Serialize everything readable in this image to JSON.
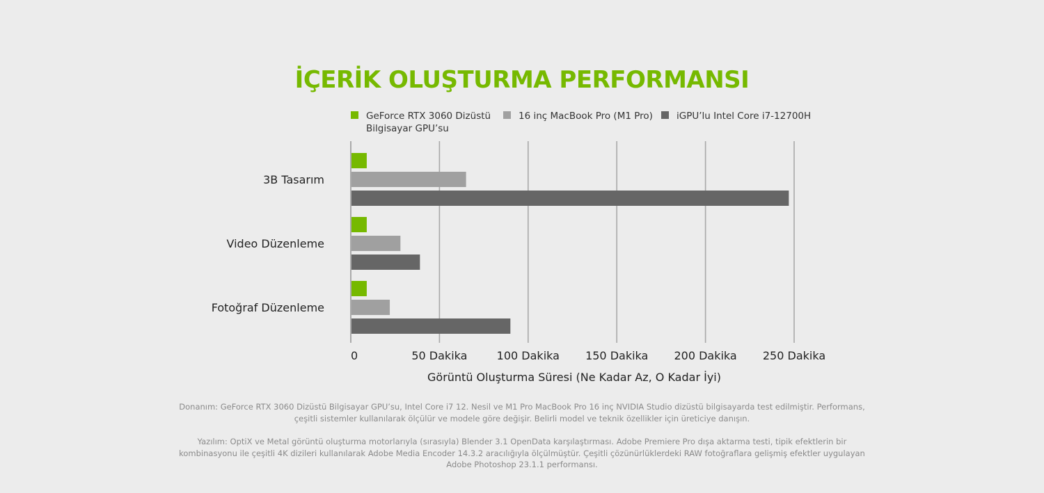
{
  "chart_data": {
    "type": "bar",
    "orientation": "horizontal",
    "title": "İÇERİK OLUŞTURMA PERFORMANSI",
    "categories": [
      "3B Tasarım",
      "Video Düzenleme",
      "Fotoğraf Düzenleme"
    ],
    "series": [
      {
        "name": "GeForce RTX 3060 Dizüstü Bilgisayar GPU’su",
        "name_lines": [
          "GeForce RTX 3060 Dizüstü",
          "Bilgisayar GPU’su"
        ],
        "color": "#76b900",
        "values": [
          9,
          9,
          9
        ]
      },
      {
        "name": "16 inç MacBook Pro (M1 Pro)",
        "name_lines": [
          "16 inç MacBook Pro (M1 Pro)"
        ],
        "color": "#a0a0a0",
        "values": [
          65,
          28,
          22
        ]
      },
      {
        "name": "iGPU’lu Intel Core i7-12700H",
        "name_lines": [
          "iGPU’lu Intel Core i7-12700H"
        ],
        "color": "#666666",
        "values": [
          247,
          39,
          90
        ]
      }
    ],
    "xlim": [
      0,
      250
    ],
    "xticks": [
      0,
      50,
      100,
      150,
      200,
      250
    ],
    "xtick_labels": [
      "0",
      "50 Dakika",
      "100 Dakika",
      "150 Dakika",
      "200 Dakika",
      "250 Dakika"
    ],
    "xlabel": "Görüntü Oluşturma Süresi (Ne Kadar Az, O Kadar İyi)",
    "ylabel": "",
    "grid": "vertical",
    "legend_position": "top"
  },
  "footnotes": {
    "hardware": "Donanım: GeForce RTX 3060 Dizüstü Bilgisayar GPU’su, Intel Core i7 12. Nesil ve M1 Pro MacBook Pro 16 inç NVIDIA Studio dizüstü bilgisayarda test edilmiştir. Performans, çeşitli sistemler kullanılarak ölçülür ve modele göre değişir. Belirli model ve teknik özellikler için üreticiye danışın.",
    "software": "Yazılım: OptiX ve Metal görüntü oluşturma motorlarıyla (sırasıyla) Blender 3.1 OpenData karşılaştırması. Adobe Premiere Pro dışa aktarma testi, tipik efektlerin bir kombinasyonu ile çeşitli 4K dizileri kullanılarak Adobe Media Encoder 14.3.2 aracılığıyla ölçülmüştür. Çeşitli çözünürlüklerdeki RAW fotoğraflara gelişmiş efektler uygulayan Adobe Photoshop 23.1.1 performansı."
  }
}
